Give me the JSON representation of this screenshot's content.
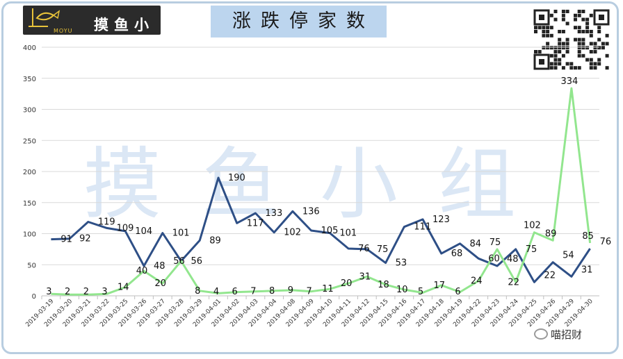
{
  "header": {
    "logo_text": "摸鱼小组",
    "logo_sub": "MOYU",
    "title": "涨跌停家数"
  },
  "watermark": "摸鱼小组",
  "credit": "喵招财",
  "colors": {
    "limit_up": "#2e4f86",
    "limit_down": "#92e68e",
    "title_bg": "#bcd5ee",
    "frame": "#b8cde0",
    "watermark": "#dbe7f5"
  },
  "chart_data": {
    "type": "line",
    "title": "涨跌停家数",
    "x": [
      "2019-03-19",
      "2019-03-20",
      "2019-03-21",
      "2019-03-22",
      "2019-03-25",
      "2019-03-26",
      "2019-03-27",
      "2019-03-28",
      "2019-03-29",
      "2019-04-01",
      "2019-04-02",
      "2019-04-03",
      "2019-04-04",
      "2019-04-08",
      "2019-04-09",
      "2019-04-10",
      "2019-04-11",
      "2019-04-12",
      "2019-04-15",
      "2019-04-16",
      "2019-04-17",
      "2019-04-18",
      "2019-04-19",
      "2019-04-22",
      "2019-04-23",
      "2019-04-24",
      "2019-04-25",
      "2019-04-26",
      "2019-04-29",
      "2019-04-30"
    ],
    "series": [
      {
        "values": [
          91,
          92,
          119,
          109,
          104,
          48,
          101,
          56,
          89,
          190,
          117,
          133,
          102,
          136,
          105,
          101,
          76,
          75,
          53,
          111,
          123,
          68,
          84,
          60,
          48,
          75,
          22,
          54,
          31,
          76
        ],
        "color": "#2e4f86"
      },
      {
        "values": [
          3,
          2,
          2,
          3,
          14,
          40,
          20,
          56,
          8,
          4,
          6,
          7,
          8,
          9,
          7,
          11,
          20,
          31,
          18,
          10,
          5,
          17,
          6,
          24,
          75,
          22,
          102,
          89,
          334,
          85
        ],
        "color": "#92e68e"
      }
    ],
    "yticks": [
      "0",
      "50",
      "100",
      "150",
      "200",
      "250",
      "300",
      "350",
      "400"
    ],
    "ylim": [
      0,
      400
    ],
    "grid": true,
    "legend": "none"
  }
}
